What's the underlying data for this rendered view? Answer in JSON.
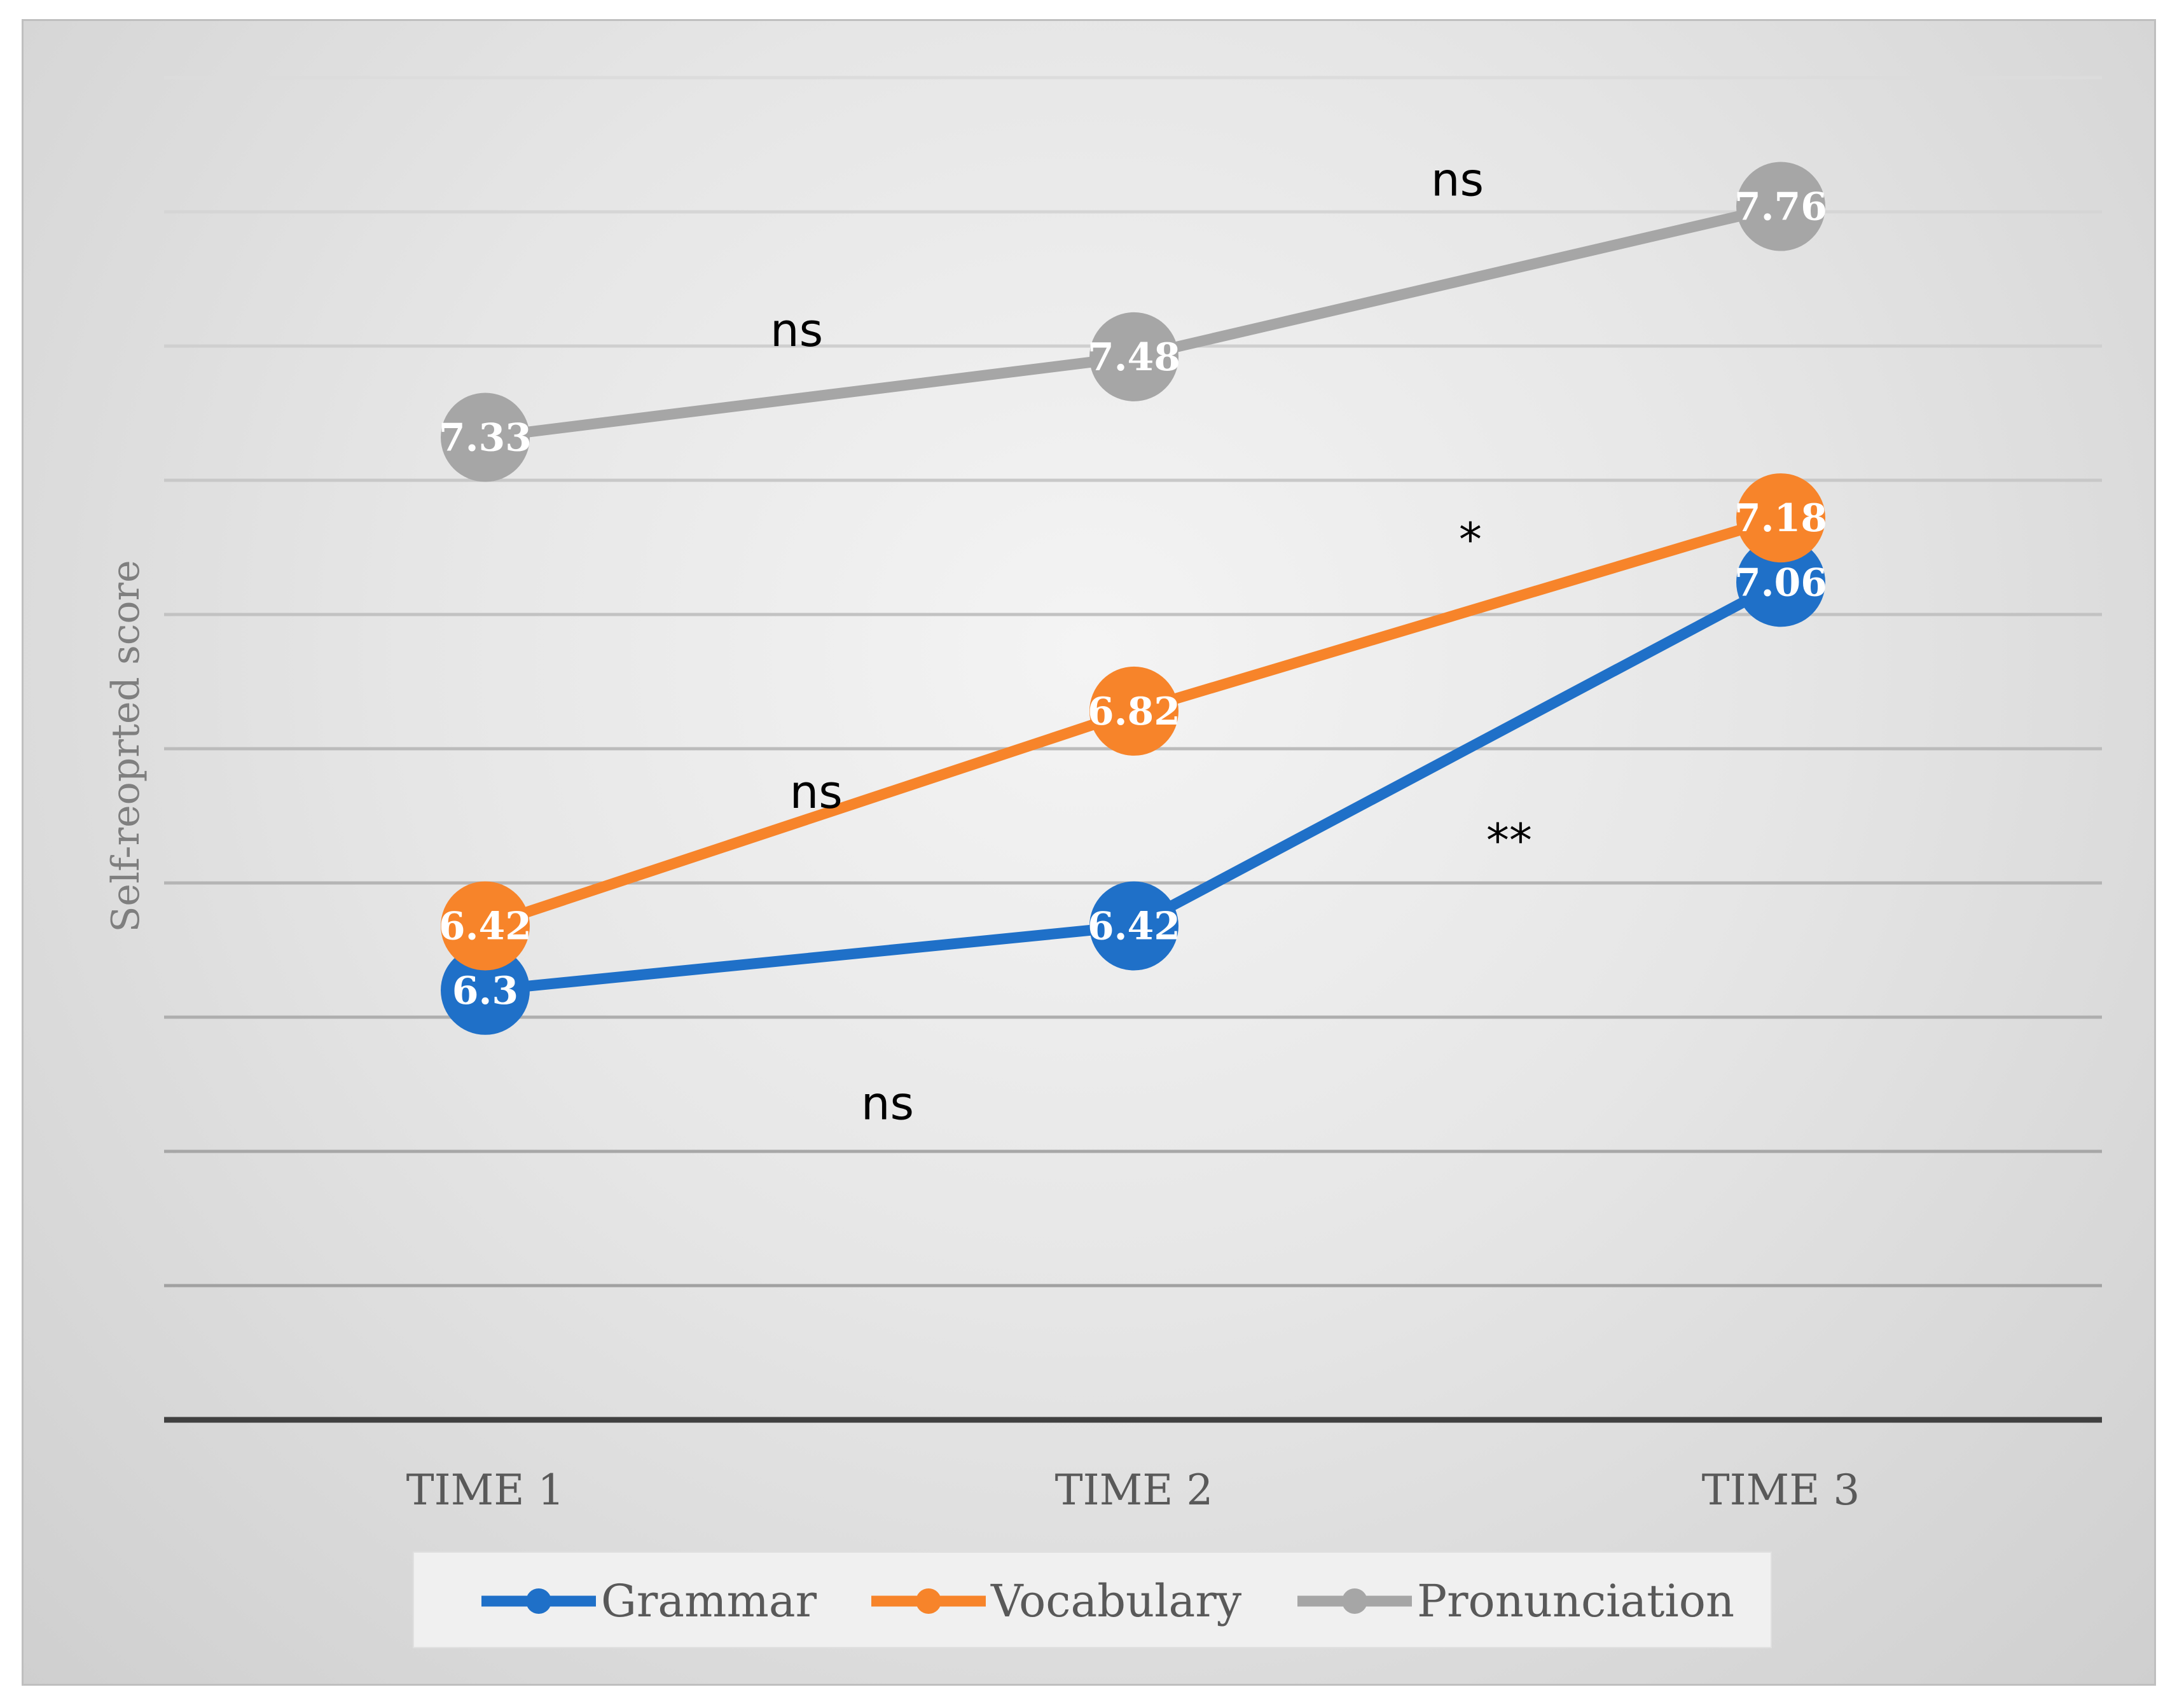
{
  "chart_data": {
    "type": "line",
    "ylabel": "Self-reoprted score",
    "categories": [
      "TIME 1",
      "TIME 2",
      "TIME 3"
    ],
    "ylim": [
      5.5,
      8.0
    ],
    "ystep": 0.25,
    "grid": true,
    "legend_position": "bottom",
    "series": [
      {
        "name": "Grammar",
        "values": [
          6.3,
          6.42,
          7.06
        ],
        "labels": [
          "6.3",
          "6.42",
          "7.06"
        ],
        "color": "#1f70c8"
      },
      {
        "name": "Vocabulary",
        "values": [
          6.42,
          6.82,
          7.18
        ],
        "labels": [
          "6.42",
          "6.82",
          "7.18"
        ],
        "color": "#f7842a"
      },
      {
        "name": "Pronunciation",
        "values": [
          7.33,
          7.48,
          7.76
        ],
        "labels": [
          "7.33",
          "7.48",
          "7.76"
        ],
        "color": "#a6a6a6"
      }
    ],
    "annotations": [
      {
        "text": "ns",
        "x": 1.62,
        "y": 6.06
      },
      {
        "text": "ns",
        "x": 1.51,
        "y": 6.64
      },
      {
        "text": "ns",
        "x": 1.48,
        "y": 7.5
      },
      {
        "text": "ns",
        "x": 2.5,
        "y": 7.78
      },
      {
        "text": "*",
        "x": 2.52,
        "y": 7.11
      },
      {
        "text": "**",
        "x": 2.58,
        "y": 6.55
      }
    ]
  }
}
